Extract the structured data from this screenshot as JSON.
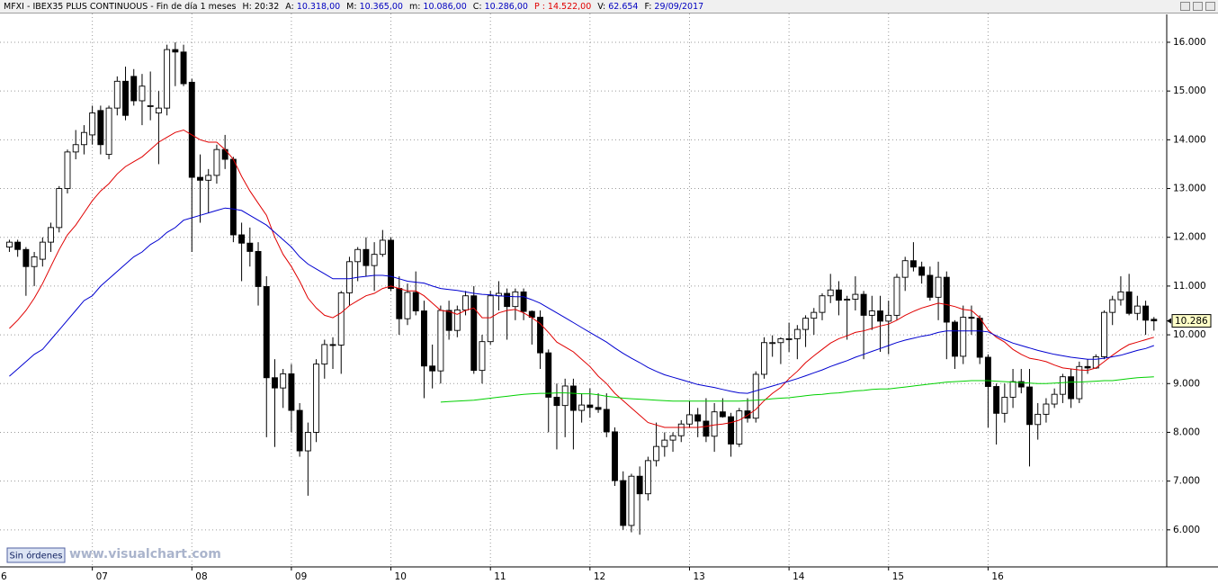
{
  "chart_data": {
    "type": "candlestick",
    "header": {
      "title": "MFXI - IBEX35 PLUS CONTINUOUS - Fin de día 1 meses",
      "fields": [
        {
          "label": "H:",
          "value": "20:32",
          "color": "#000000"
        },
        {
          "label": "A:",
          "value": "10.318,00",
          "color": "#0000c0"
        },
        {
          "label": "M:",
          "value": "10.365,00",
          "color": "#0000c0"
        },
        {
          "label": "m:",
          "value": "10.086,00",
          "color": "#0000c0"
        },
        {
          "label": "C:",
          "value": "10.286,00",
          "color": "#0000c0"
        },
        {
          "label": "P :",
          "value": "14.522,00",
          "color": "#e00000"
        },
        {
          "label": "V:",
          "value": "62.654",
          "color": "#0000c0"
        },
        {
          "label": "F:",
          "value": "29/09/2017",
          "color": "#0000c0"
        }
      ]
    },
    "button": "Sin órdenes",
    "watermark": "www.visualchart.com",
    "categories": [
      "6",
      null,
      null,
      null,
      null,
      null,
      null,
      null,
      null,
      null,
      null,
      null,
      "07",
      null,
      null,
      null,
      null,
      null,
      null,
      null,
      null,
      null,
      null,
      null,
      "08",
      null,
      null,
      null,
      null,
      null,
      null,
      null,
      null,
      null,
      null,
      null,
      "09",
      null,
      null,
      null,
      null,
      null,
      null,
      null,
      null,
      null,
      null,
      null,
      "10",
      null,
      null,
      null,
      null,
      null,
      null,
      null,
      null,
      null,
      null,
      null,
      "11",
      null,
      null,
      null,
      null,
      null,
      null,
      null,
      null,
      null,
      null,
      null,
      "12",
      null,
      null,
      null,
      null,
      null,
      null,
      null,
      null,
      null,
      null,
      null,
      "13",
      null,
      null,
      null,
      null,
      null,
      null,
      null,
      null,
      null,
      null,
      null,
      "14",
      null,
      null,
      null,
      null,
      null,
      null,
      null,
      null,
      null,
      null,
      null,
      "15",
      null,
      null,
      null,
      null,
      null,
      null,
      null,
      null,
      null,
      null,
      null,
      "16",
      null,
      null,
      null,
      null,
      null,
      null,
      null,
      null,
      null,
      null,
      null,
      null,
      null,
      null,
      null,
      null,
      null,
      null,
      null,
      null
    ],
    "open": [
      null,
      null,
      11800,
      11900,
      11750,
      11400,
      11550,
      11900,
      12200,
      13000,
      13750,
      13900,
      14100,
      14600,
      13700,
      14650,
      15200,
      15300,
      14800,
      14700,
      14550,
      14650,
      15850,
      15800,
      15180,
      13230,
      13170,
      13270,
      13800,
      13600,
      12050,
      11880,
      11710,
      10990,
      9120,
      8910,
      9200,
      8450,
      7620,
      8000,
      9400,
      9800,
      9790,
      10860,
      11500,
      11750,
      11420,
      11650,
      11940,
      10950,
      10330,
      10870,
      10490,
      9360,
      9260,
      10500,
      10090,
      10510,
      10800,
      9270,
      9860,
      10800,
      10850,
      10580,
      10880,
      10480,
      10360,
      9630,
      8720,
      8550,
      8950,
      8450,
      8560,
      8510,
      8470,
      8010,
      7010,
      6090,
      7100,
      6740,
      7420,
      7710,
      7840,
      7930,
      8170,
      8360,
      8230,
      7920,
      8420,
      8320,
      7760,
      8440,
      8290,
      9190,
      9840,
      9840,
      9920,
      9920,
      10110,
      10340,
      10460,
      10800,
      10920,
      10710,
      10730,
      10830,
      10400,
      10490,
      10280,
      10400,
      11180,
      11520,
      11390,
      11220,
      10770,
      11180,
      10260,
      9560,
      10360,
      10340,
      9540,
      8940,
      8390,
      8720,
      9040,
      8930,
      8160,
      8370,
      8580,
      8780,
      9140,
      8690,
      9350,
      9320,
      9550,
      10460,
      10720,
      10880,
      10440,
      10590,
      10318
    ],
    "high": [
      null,
      null,
      11950,
      11950,
      11800,
      11700,
      12000,
      12300,
      13050,
      13800,
      14200,
      14300,
      14700,
      14700,
      14700,
      15300,
      15500,
      15450,
      15350,
      15400,
      15000,
      15950,
      16000,
      15950,
      15250,
      13700,
      13400,
      13900,
      14100,
      13650,
      12300,
      12200,
      11900,
      11200,
      9500,
      9300,
      9400,
      8600,
      8200,
      9500,
      9900,
      9950,
      10900,
      11600,
      11800,
      12000,
      11900,
      12150,
      12000,
      11200,
      11050,
      11300,
      10700,
      9800,
      10600,
      10700,
      10600,
      10900,
      11000,
      10000,
      10900,
      11100,
      10950,
      10950,
      10950,
      10500,
      10500,
      9700,
      9000,
      9100,
      9100,
      8800,
      8900,
      8800,
      8800,
      8100,
      7200,
      7150,
      7300,
      7500,
      8200,
      8000,
      8000,
      8250,
      8650,
      8500,
      8700,
      8600,
      8700,
      8400,
      8500,
      8700,
      9250,
      9950,
      9990,
      9950,
      10250,
      10200,
      10400,
      10550,
      10850,
      11250,
      11100,
      10800,
      11200,
      10900,
      10800,
      10800,
      10700,
      11250,
      11600,
      11900,
      11500,
      11400,
      11500,
      11300,
      10300,
      10600,
      10600,
      10400,
      9600,
      9000,
      9000,
      9300,
      9300,
      9300,
      8600,
      8700,
      8900,
      9200,
      9300,
      9450,
      9500,
      9600,
      10500,
      10800,
      11200,
      11250,
      10800,
      10700,
      10365
    ],
    "low": [
      null,
      null,
      11700,
      11600,
      10800,
      11000,
      11400,
      11700,
      12100,
      12900,
      13600,
      13700,
      13900,
      13700,
      13600,
      14500,
      14400,
      14700,
      14300,
      14400,
      13500,
      14500,
      15100,
      15100,
      11700,
      12300,
      12500,
      13100,
      13400,
      11900,
      11100,
      11400,
      10600,
      7900,
      7700,
      8500,
      8000,
      7500,
      6700,
      7800,
      9100,
      9300,
      9200,
      10600,
      11100,
      11200,
      10900,
      11600,
      10900,
      10000,
      10200,
      10400,
      8700,
      8900,
      9000,
      9900,
      9950,
      10400,
      9200,
      9000,
      9800,
      10500,
      9900,
      10300,
      10300,
      9800,
      9300,
      8000,
      7650,
      7900,
      7650,
      8200,
      8300,
      8400,
      7900,
      6900,
      6000,
      5950,
      5900,
      6600,
      7300,
      7500,
      7600,
      7800,
      8100,
      7900,
      7800,
      7600,
      8300,
      7500,
      7700,
      8200,
      8200,
      9100,
      9550,
      9400,
      9650,
      9500,
      9750,
      10000,
      10300,
      10650,
      10400,
      9900,
      10500,
      9500,
      10100,
      9650,
      9600,
      10300,
      10900,
      11300,
      11050,
      10700,
      10300,
      9500,
      9300,
      9400,
      10000,
      9400,
      8100,
      7750,
      8200,
      8500,
      8800,
      7300,
      7850,
      8200,
      8500,
      8600,
      8500,
      8600,
      9200,
      9300,
      9500,
      10200,
      10600,
      10400,
      10300,
      10000,
      10086
    ],
    "close": [
      null,
      null,
      11900,
      11750,
      11400,
      11600,
      11900,
      12200,
      13000,
      13750,
      13900,
      14150,
      14550,
      13900,
      14650,
      15200,
      14500,
      14800,
      15100,
      14700,
      14650,
      15850,
      15800,
      15150,
      13230,
      13170,
      13270,
      13800,
      13600,
      12050,
      11880,
      11710,
      10990,
      9120,
      8910,
      9200,
      8450,
      7620,
      8000,
      9400,
      9800,
      9790,
      10860,
      11500,
      11750,
      11420,
      11650,
      11940,
      10950,
      10330,
      10870,
      10490,
      9360,
      9260,
      10500,
      10090,
      10510,
      10800,
      9270,
      9860,
      10800,
      10850,
      10580,
      10880,
      10480,
      10360,
      9630,
      8720,
      8550,
      8950,
      8450,
      8560,
      8510,
      8470,
      8010,
      7010,
      6090,
      7100,
      6740,
      7420,
      7710,
      7840,
      7930,
      8170,
      8360,
      8230,
      7920,
      8420,
      8320,
      7760,
      8440,
      8290,
      9190,
      9840,
      9840,
      9920,
      9920,
      10110,
      10340,
      10460,
      10800,
      10920,
      10710,
      10730,
      10830,
      10400,
      10490,
      10280,
      10400,
      11180,
      11520,
      11390,
      11220,
      10770,
      11180,
      10260,
      9560,
      10360,
      10340,
      9540,
      8940,
      8390,
      8720,
      9040,
      8930,
      8160,
      8370,
      8580,
      8780,
      9140,
      8690,
      9350,
      9320,
      9550,
      10460,
      10720,
      10880,
      10440,
      10590,
      10300,
      10286
    ],
    "overlays": [
      {
        "color": "#e00000",
        "values": [
          null,
          null,
          10130,
          10300,
          10500,
          10750,
          11050,
          11400,
          11750,
          12050,
          12250,
          12500,
          12750,
          12950,
          13100,
          13300,
          13450,
          13550,
          13650,
          13800,
          13950,
          14050,
          14150,
          14200,
          14100,
          14000,
          13950,
          13950,
          13800,
          13600,
          13250,
          12950,
          12700,
          12450,
          12000,
          11650,
          11400,
          11100,
          10750,
          10550,
          10400,
          10350,
          10450,
          10600,
          10700,
          10800,
          10850,
          10950,
          11000,
          10950,
          10900,
          10900,
          10800,
          10650,
          10500,
          10480,
          10420,
          10500,
          10550,
          10350,
          10350,
          10450,
          10500,
          10520,
          10450,
          10350,
          10230,
          10050,
          9850,
          9750,
          9650,
          9500,
          9350,
          9150,
          9000,
          8800,
          8650,
          8500,
          8350,
          8200,
          8150,
          8100,
          8100,
          8100,
          8100,
          8100,
          8120,
          8150,
          8170,
          8200,
          8250,
          8350,
          8470,
          8650,
          8800,
          8920,
          9100,
          9250,
          9430,
          9570,
          9700,
          9830,
          9920,
          9980,
          10050,
          10080,
          10130,
          10180,
          10220,
          10300,
          10400,
          10480,
          10550,
          10600,
          10650,
          10620,
          10580,
          10520,
          10500,
          10350,
          10100,
          9950,
          9850,
          9700,
          9600,
          9520,
          9490,
          9450,
          9380,
          9320,
          9300,
          9280,
          9270,
          9320,
          9450,
          9580,
          9700,
          9800,
          9850,
          9900,
          9950
        ]
      },
      {
        "color": "#0000d0",
        "values": [
          null,
          null,
          9150,
          9300,
          9450,
          9600,
          9700,
          9900,
          10100,
          10300,
          10500,
          10700,
          10800,
          11000,
          11150,
          11300,
          11450,
          11600,
          11700,
          11850,
          11950,
          12100,
          12200,
          12350,
          12400,
          12450,
          12500,
          12550,
          12600,
          12580,
          12550,
          12450,
          12350,
          12250,
          12100,
          11950,
          11800,
          11600,
          11450,
          11350,
          11250,
          11150,
          11150,
          11150,
          11180,
          11200,
          11220,
          11220,
          11200,
          11150,
          11100,
          11080,
          11060,
          11000,
          10950,
          10930,
          10910,
          10880,
          10850,
          10830,
          10820,
          10800,
          10790,
          10780,
          10780,
          10720,
          10650,
          10550,
          10450,
          10350,
          10250,
          10150,
          10050,
          9950,
          9850,
          9730,
          9620,
          9520,
          9430,
          9330,
          9250,
          9180,
          9130,
          9080,
          9030,
          8980,
          8950,
          8920,
          8880,
          8840,
          8810,
          8800,
          8850,
          8900,
          8950,
          9000,
          9050,
          9100,
          9160,
          9220,
          9280,
          9350,
          9410,
          9470,
          9540,
          9600,
          9660,
          9720,
          9780,
          9840,
          9890,
          9930,
          9970,
          10000,
          10050,
          10080,
          10080,
          10080,
          10080,
          10080,
          10060,
          9980,
          9900,
          9830,
          9780,
          9730,
          9680,
          9640,
          9600,
          9570,
          9540,
          9520,
          9500,
          9500,
          9520,
          9550,
          9580,
          9630,
          9680,
          9720,
          9780
        ]
      },
      {
        "color": "#00d000",
        "values": [
          null,
          null,
          null,
          null,
          null,
          null,
          null,
          null,
          null,
          null,
          null,
          null,
          null,
          null,
          null,
          null,
          null,
          null,
          null,
          null,
          null,
          null,
          null,
          null,
          null,
          null,
          null,
          null,
          null,
          null,
          null,
          null,
          null,
          null,
          null,
          null,
          null,
          null,
          null,
          null,
          null,
          null,
          null,
          null,
          null,
          null,
          null,
          null,
          null,
          null,
          null,
          null,
          null,
          null,
          8620,
          8630,
          8640,
          8650,
          8660,
          8680,
          8700,
          8720,
          8740,
          8760,
          8780,
          8790,
          8800,
          8800,
          8810,
          8810,
          8800,
          8790,
          8790,
          8770,
          8740,
          8720,
          8700,
          8690,
          8680,
          8670,
          8660,
          8650,
          8640,
          8640,
          8640,
          8640,
          8640,
          8640,
          8640,
          8640,
          8640,
          8650,
          8660,
          8670,
          8690,
          8700,
          8710,
          8730,
          8750,
          8770,
          8780,
          8800,
          8810,
          8830,
          8850,
          8860,
          8880,
          8890,
          8890,
          8910,
          8930,
          8950,
          8970,
          8990,
          9010,
          9030,
          9040,
          9050,
          9060,
          9060,
          9060,
          9050,
          9040,
          9030,
          9020,
          9010,
          9000,
          9000,
          9010,
          9020,
          9030,
          9030,
          9040,
          9050,
          9060,
          9060,
          9080,
          9100,
          9120,
          9130,
          9140
        ]
      }
    ],
    "last_price": {
      "value": 10286,
      "label": "10.286"
    },
    "ylim": [
      5240,
      16590
    ],
    "yticks": [
      {
        "value": 6000,
        "label": "6.000"
      },
      {
        "value": 7000,
        "label": "7.000"
      },
      {
        "value": 8000,
        "label": "8.000"
      },
      {
        "value": 9000,
        "label": "9.000"
      },
      {
        "value": 10000,
        "label": "10.000"
      },
      {
        "value": 11000,
        "label": "11.000"
      },
      {
        "value": 12000,
        "label": "12.000"
      },
      {
        "value": 13000,
        "label": "13.000"
      },
      {
        "value": 14000,
        "label": "14.000"
      },
      {
        "value": 15000,
        "label": "15.000"
      },
      {
        "value": 16000,
        "label": "16.000"
      }
    ],
    "grid": true
  }
}
